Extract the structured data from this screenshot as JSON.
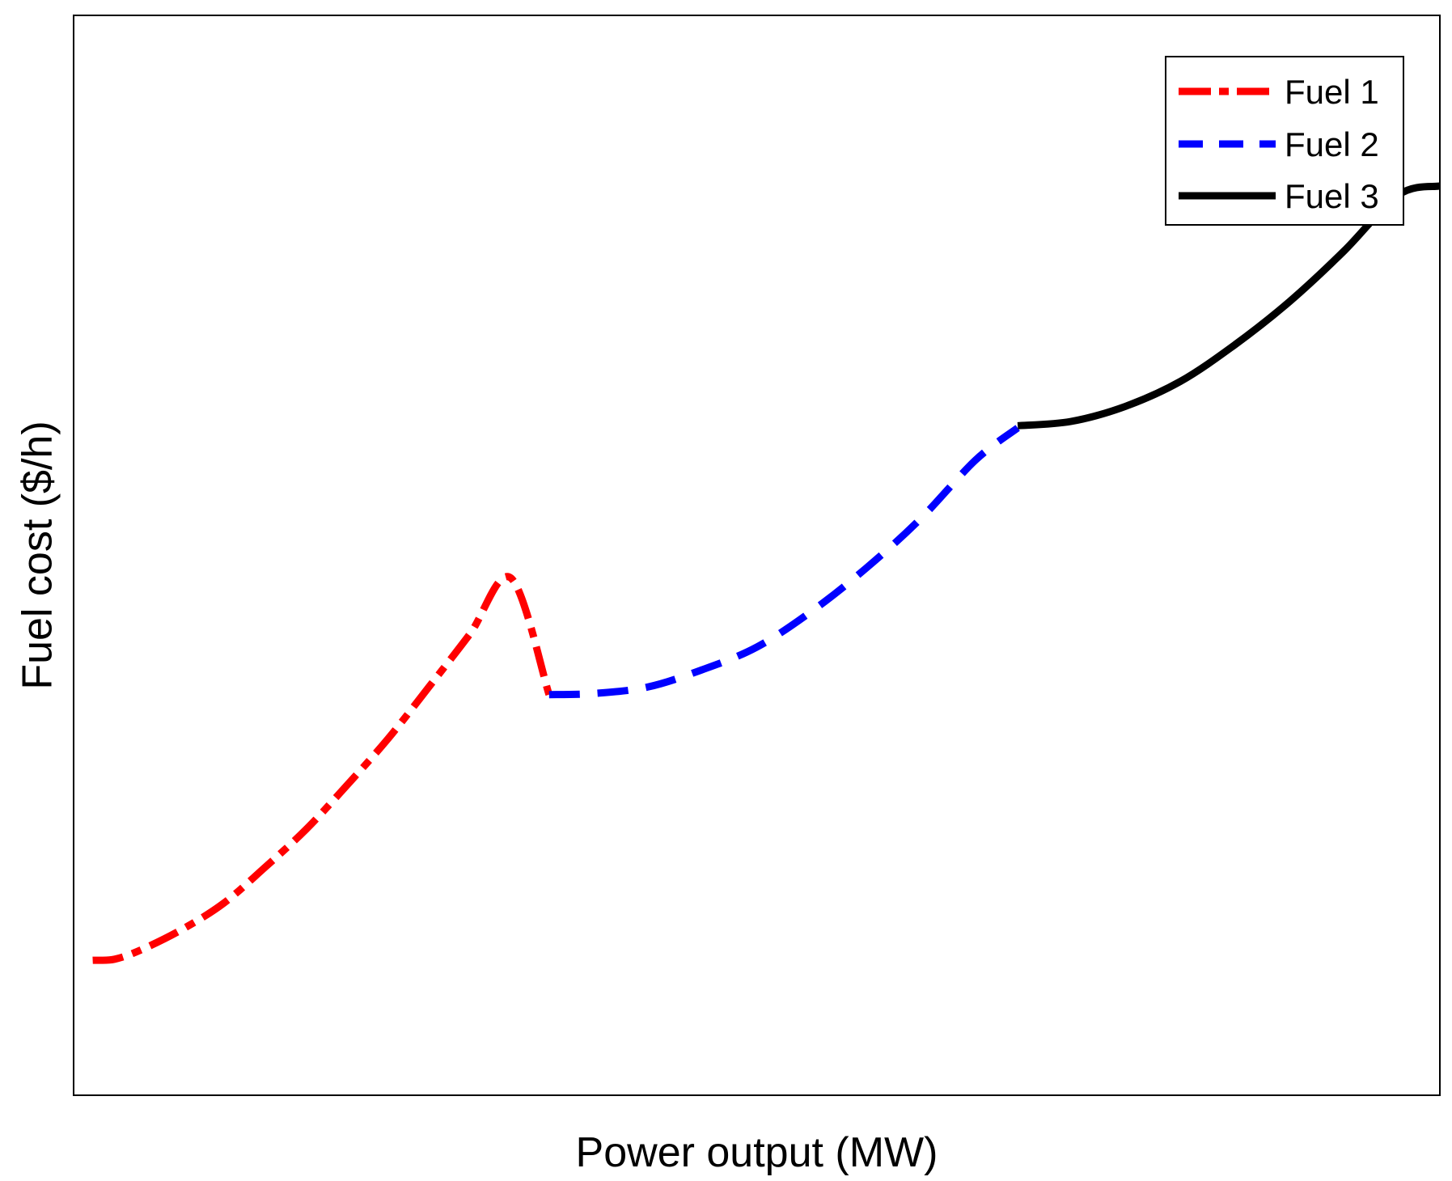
{
  "chart_data": {
    "type": "line",
    "title": "",
    "xlabel": "Power output (MW)",
    "ylabel": "Fuel cost ($/h)",
    "xlim": [
      0,
      100
    ],
    "ylim": [
      0,
      100
    ],
    "grid": false,
    "ticks_shown": false,
    "legend_position": "top-right",
    "series": [
      {
        "name": "Fuel 1",
        "color": "#ff0000",
        "line_style": "dash-dot",
        "x": [
          1.4,
          3,
          5,
          8,
          11,
          14,
          17,
          20,
          23,
          26,
          29,
          32,
          34.8
        ],
        "y": [
          12.5,
          12.6,
          13.5,
          15.4,
          17.8,
          21.1,
          24.6,
          28.7,
          33.0,
          37.8,
          42.7,
          47.9,
          37.1
        ]
      },
      {
        "name": "Fuel 2",
        "color": "#0000ff",
        "line_style": "dashed",
        "x": [
          34.8,
          38,
          42,
          46,
          50,
          54,
          58,
          62,
          66,
          69.1
        ],
        "y": [
          37.1,
          37.2,
          37.8,
          39.4,
          41.5,
          44.8,
          48.8,
          53.4,
          58.8,
          61.8
        ]
      },
      {
        "name": "Fuel 3",
        "color": "#000000",
        "line_style": "solid",
        "x": [
          69.1,
          73,
          77,
          81,
          85,
          89,
          93,
          97,
          100
        ],
        "y": [
          62.0,
          62.4,
          63.8,
          66.1,
          69.5,
          73.5,
          78.2,
          83.4,
          84.2
        ]
      }
    ]
  }
}
